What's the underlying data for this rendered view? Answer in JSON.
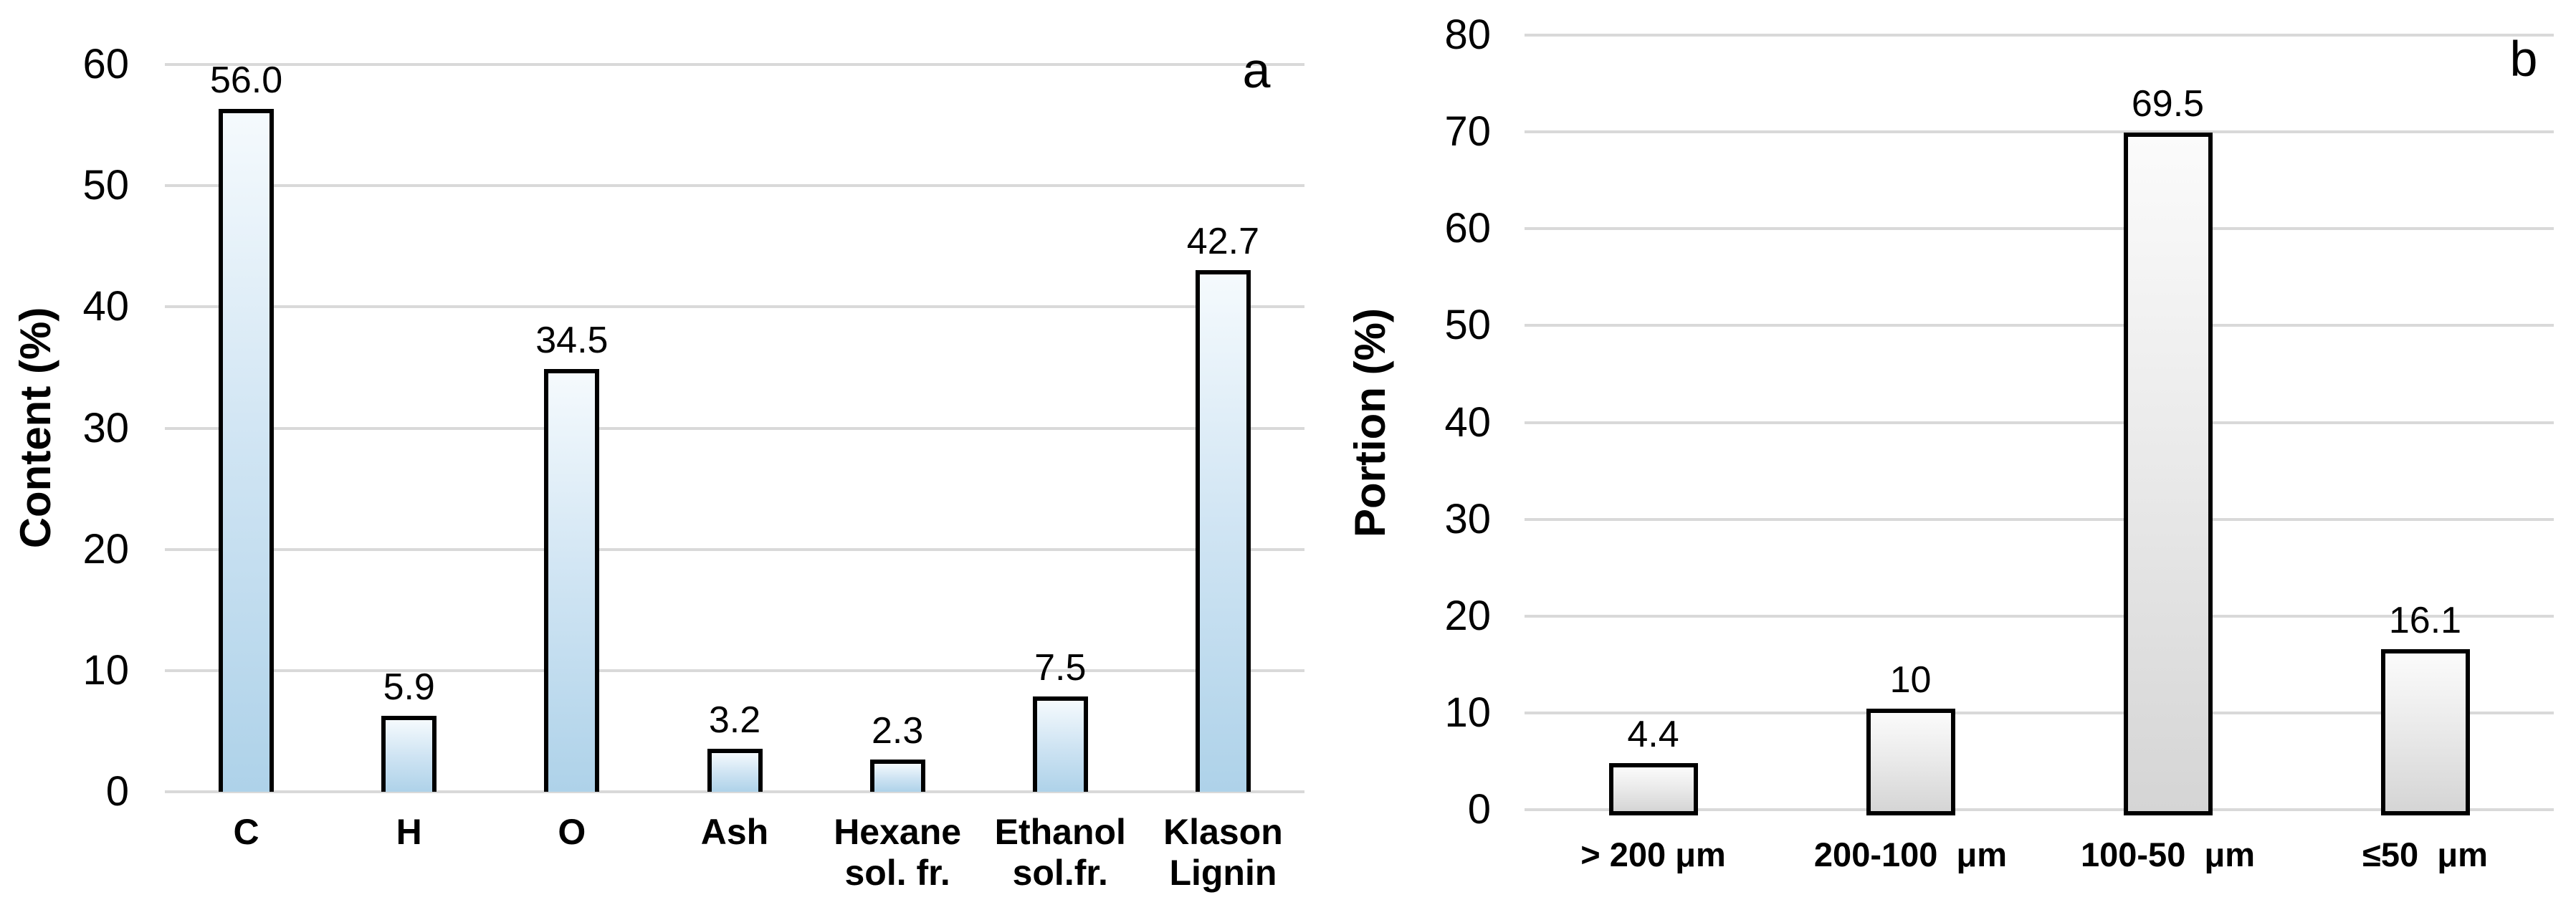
{
  "figure": {
    "background": "#ffffff",
    "panel_count": 2
  },
  "colors": {
    "gridline": "#d9d9d9",
    "text": "#000000",
    "bar_border": "#000000",
    "panel_a_bar_top": "#f5fafd",
    "panel_a_bar_mid": "#cfe4f3",
    "panel_a_bar_bottom": "#aed2e9",
    "panel_b_bar_top": "#fbfbfb",
    "panel_b_bar_mid": "#e9e9e9",
    "panel_b_bar_bottom": "#d5d5d5"
  },
  "chart_data": [
    {
      "type": "bar",
      "panel_label": "a",
      "title": "",
      "xlabel": "",
      "ylabel": "Content (%)",
      "categories": [
        "C",
        "H",
        "O",
        "Ash",
        "Hexane\nsol. fr.",
        "Ethanol\nsol.fr.",
        "Klason\nLignin"
      ],
      "values": [
        56.0,
        5.9,
        34.5,
        3.2,
        2.3,
        7.5,
        42.7
      ],
      "value_labels": [
        "56.0",
        "5.9",
        "34.5",
        "3.2",
        "2.3",
        "7.5",
        "42.7"
      ],
      "ylim": [
        0,
        60
      ],
      "ytick_step": 10,
      "ytick_labels": [
        "0",
        "10",
        "20",
        "30",
        "40",
        "50",
        "60"
      ],
      "grid": true,
      "legend": null,
      "bar_fill_top": "#f5fafd",
      "bar_fill_mid": "#cfe4f3",
      "bar_fill_bottom": "#aed2e9",
      "bar_border": "#000000"
    },
    {
      "type": "bar",
      "panel_label": "b",
      "title": "",
      "xlabel": "",
      "ylabel": "Portion (%)",
      "categories": [
        "> 200 μm",
        "200-100  μm",
        "100-50  μm",
        "≤50  μm"
      ],
      "values": [
        4.4,
        10,
        69.5,
        16.1
      ],
      "value_labels": [
        "4.4",
        "10",
        "69.5",
        "16.1"
      ],
      "ylim": [
        0,
        80
      ],
      "ytick_step": 10,
      "ytick_labels": [
        "0",
        "10",
        "20",
        "30",
        "40",
        "50",
        "60",
        "70",
        "80"
      ],
      "grid": true,
      "legend": null,
      "bar_fill_top": "#fbfbfb",
      "bar_fill_mid": "#e9e9e9",
      "bar_fill_bottom": "#d5d5d5",
      "bar_border": "#000000"
    }
  ]
}
